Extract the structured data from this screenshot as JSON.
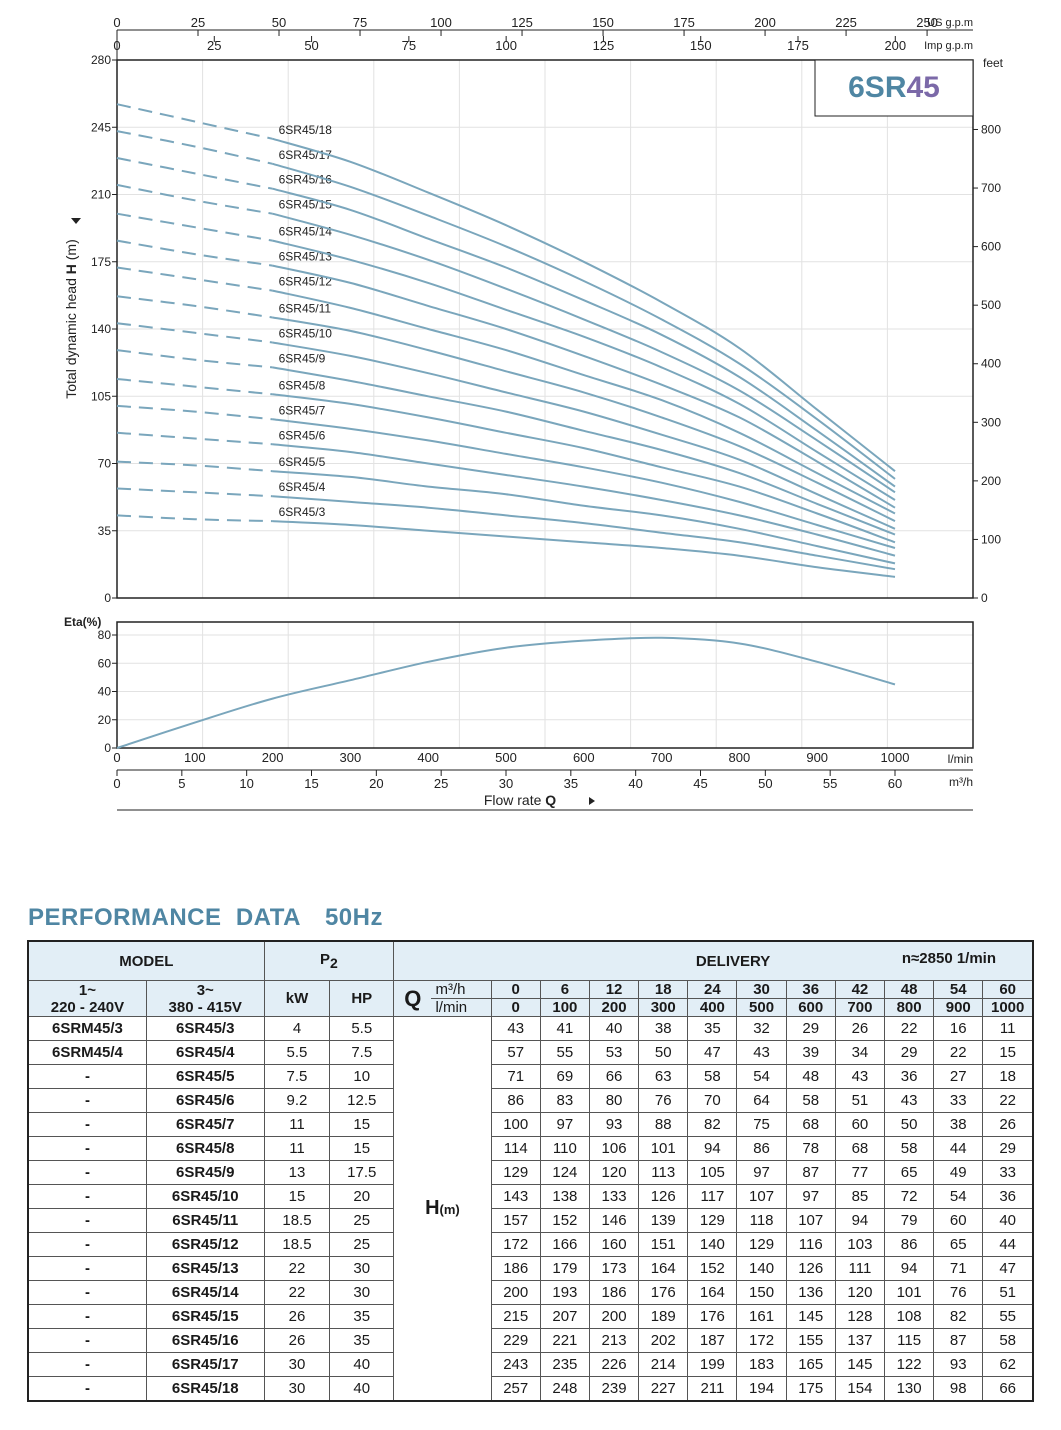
{
  "chart_data": {
    "type": "line",
    "title": "6SR45",
    "title_parts": {
      "prefix": "6SR",
      "suffix": "45"
    },
    "colors": {
      "curve": "#7aa6bc",
      "title_prefix": "#4f86a3",
      "title_suffix": "#7b69a8",
      "axis": "#222222",
      "grid": "#e2e2e2"
    },
    "head_chart": {
      "ylabel_left": "Total dynamic head",
      "ylabel_symbol": "H",
      "ylabel_unit": "(m)",
      "ylim": [
        0,
        280
      ],
      "y_ticks": [
        0,
        35,
        70,
        105,
        140,
        175,
        210,
        245,
        280
      ],
      "right_unit": "feet",
      "right_ticks": [
        0,
        100,
        200,
        300,
        400,
        500,
        600,
        700,
        800
      ],
      "top_axis_us": {
        "unit": "US g.p.m",
        "ticks": [
          0,
          25,
          50,
          75,
          100,
          125,
          150,
          175,
          200,
          225,
          250
        ]
      },
      "top_axis_imp": {
        "unit": "Imp g.p.m",
        "ticks": [
          0,
          25,
          50,
          75,
          100,
          125,
          150,
          175,
          200
        ]
      },
      "curves_x": [
        0,
        100,
        200,
        300,
        400,
        500,
        600,
        700,
        800,
        900,
        1000
      ],
      "dashed_until": 200
    },
    "eta_chart": {
      "ylabel": "Eta(%)",
      "ylim": [
        0,
        80
      ],
      "y_ticks": [
        0,
        20,
        40,
        60,
        80
      ],
      "x": [
        0,
        100,
        200,
        300,
        400,
        500,
        600,
        700,
        800,
        900,
        1000
      ],
      "values": [
        0,
        18,
        35,
        48,
        61,
        71,
        76,
        78,
        74,
        61,
        45
      ]
    },
    "x_axis": {
      "lmin_unit": "l/min",
      "lmin_ticks": [
        0,
        100,
        200,
        300,
        400,
        500,
        600,
        700,
        800,
        900,
        1000
      ],
      "m3h_unit": "m³/h",
      "m3h_ticks": [
        0,
        5,
        10,
        15,
        20,
        25,
        30,
        35,
        40,
        45,
        50,
        55,
        60
      ],
      "label_text": "Flow  rate",
      "label_symbol": "Q"
    }
  },
  "performance": {
    "title": "PERFORMANCE  DATA",
    "hz": "50Hz",
    "header": {
      "model": "MODEL",
      "p2": "P",
      "p2_sub": "2",
      "delivery": "DELIVERY",
      "rpm": "n≈2850 1/min",
      "col_1ph_top": "1~",
      "col_1ph_bottom": "220 - 240V",
      "col_3ph_top": "3~",
      "col_3ph_bottom": "380 - 415V",
      "kw": "kW",
      "hp": "HP",
      "q": "Q",
      "unit_m3h": "m³/h",
      "unit_lmin": "l/min",
      "h_label": "H",
      "h_unit": "(m)"
    },
    "q_m3h": [
      "0",
      "6",
      "12",
      "18",
      "24",
      "30",
      "36",
      "42",
      "48",
      "54",
      "60"
    ],
    "q_lmin": [
      "0",
      "100",
      "200",
      "300",
      "400",
      "500",
      "600",
      "700",
      "800",
      "900",
      "1000"
    ],
    "rows": [
      {
        "m1": "6SRM45/3",
        "m3": "6SR45/3",
        "kw": "4",
        "hp": "5.5",
        "h": [
          43,
          41,
          40,
          38,
          35,
          32,
          29,
          26,
          22,
          16,
          11
        ]
      },
      {
        "m1": "6SRM45/4",
        "m3": "6SR45/4",
        "kw": "5.5",
        "hp": "7.5",
        "h": [
          57,
          55,
          53,
          50,
          47,
          43,
          39,
          34,
          29,
          22,
          15
        ]
      },
      {
        "m1": "-",
        "m3": "6SR45/5",
        "kw": "7.5",
        "hp": "10",
        "h": [
          71,
          69,
          66,
          63,
          58,
          54,
          48,
          43,
          36,
          27,
          18
        ]
      },
      {
        "m1": "-",
        "m3": "6SR45/6",
        "kw": "9.2",
        "hp": "12.5",
        "h": [
          86,
          83,
          80,
          76,
          70,
          64,
          58,
          51,
          43,
          33,
          22
        ]
      },
      {
        "m1": "-",
        "m3": "6SR45/7",
        "kw": "11",
        "hp": "15",
        "h": [
          100,
          97,
          93,
          88,
          82,
          75,
          68,
          60,
          50,
          38,
          26
        ]
      },
      {
        "m1": "-",
        "m3": "6SR45/8",
        "kw": "11",
        "hp": "15",
        "h": [
          114,
          110,
          106,
          101,
          94,
          86,
          78,
          68,
          58,
          44,
          29
        ]
      },
      {
        "m1": "-",
        "m3": "6SR45/9",
        "kw": "13",
        "hp": "17.5",
        "h": [
          129,
          124,
          120,
          113,
          105,
          97,
          87,
          77,
          65,
          49,
          33
        ]
      },
      {
        "m1": "-",
        "m3": "6SR45/10",
        "kw": "15",
        "hp": "20",
        "h": [
          143,
          138,
          133,
          126,
          117,
          107,
          97,
          85,
          72,
          54,
          36
        ]
      },
      {
        "m1": "-",
        "m3": "6SR45/11",
        "kw": "18.5",
        "hp": "25",
        "h": [
          157,
          152,
          146,
          139,
          129,
          118,
          107,
          94,
          79,
          60,
          40
        ]
      },
      {
        "m1": "-",
        "m3": "6SR45/12",
        "kw": "18.5",
        "hp": "25",
        "h": [
          172,
          166,
          160,
          151,
          140,
          129,
          116,
          103,
          86,
          65,
          44
        ]
      },
      {
        "m1": "-",
        "m3": "6SR45/13",
        "kw": "22",
        "hp": "30",
        "h": [
          186,
          179,
          173,
          164,
          152,
          140,
          126,
          111,
          94,
          71,
          47
        ]
      },
      {
        "m1": "-",
        "m3": "6SR45/14",
        "kw": "22",
        "hp": "30",
        "h": [
          200,
          193,
          186,
          176,
          164,
          150,
          136,
          120,
          101,
          76,
          51
        ]
      },
      {
        "m1": "-",
        "m3": "6SR45/15",
        "kw": "26",
        "hp": "35",
        "h": [
          215,
          207,
          200,
          189,
          176,
          161,
          145,
          128,
          108,
          82,
          55
        ]
      },
      {
        "m1": "-",
        "m3": "6SR45/16",
        "kw": "26",
        "hp": "35",
        "h": [
          229,
          221,
          213,
          202,
          187,
          172,
          155,
          137,
          115,
          87,
          58
        ]
      },
      {
        "m1": "-",
        "m3": "6SR45/17",
        "kw": "30",
        "hp": "40",
        "h": [
          243,
          235,
          226,
          214,
          199,
          183,
          165,
          145,
          122,
          93,
          62
        ]
      },
      {
        "m1": "-",
        "m3": "6SR45/18",
        "kw": "30",
        "hp": "40",
        "h": [
          257,
          248,
          239,
          227,
          211,
          194,
          175,
          154,
          130,
          98,
          66
        ]
      }
    ]
  }
}
